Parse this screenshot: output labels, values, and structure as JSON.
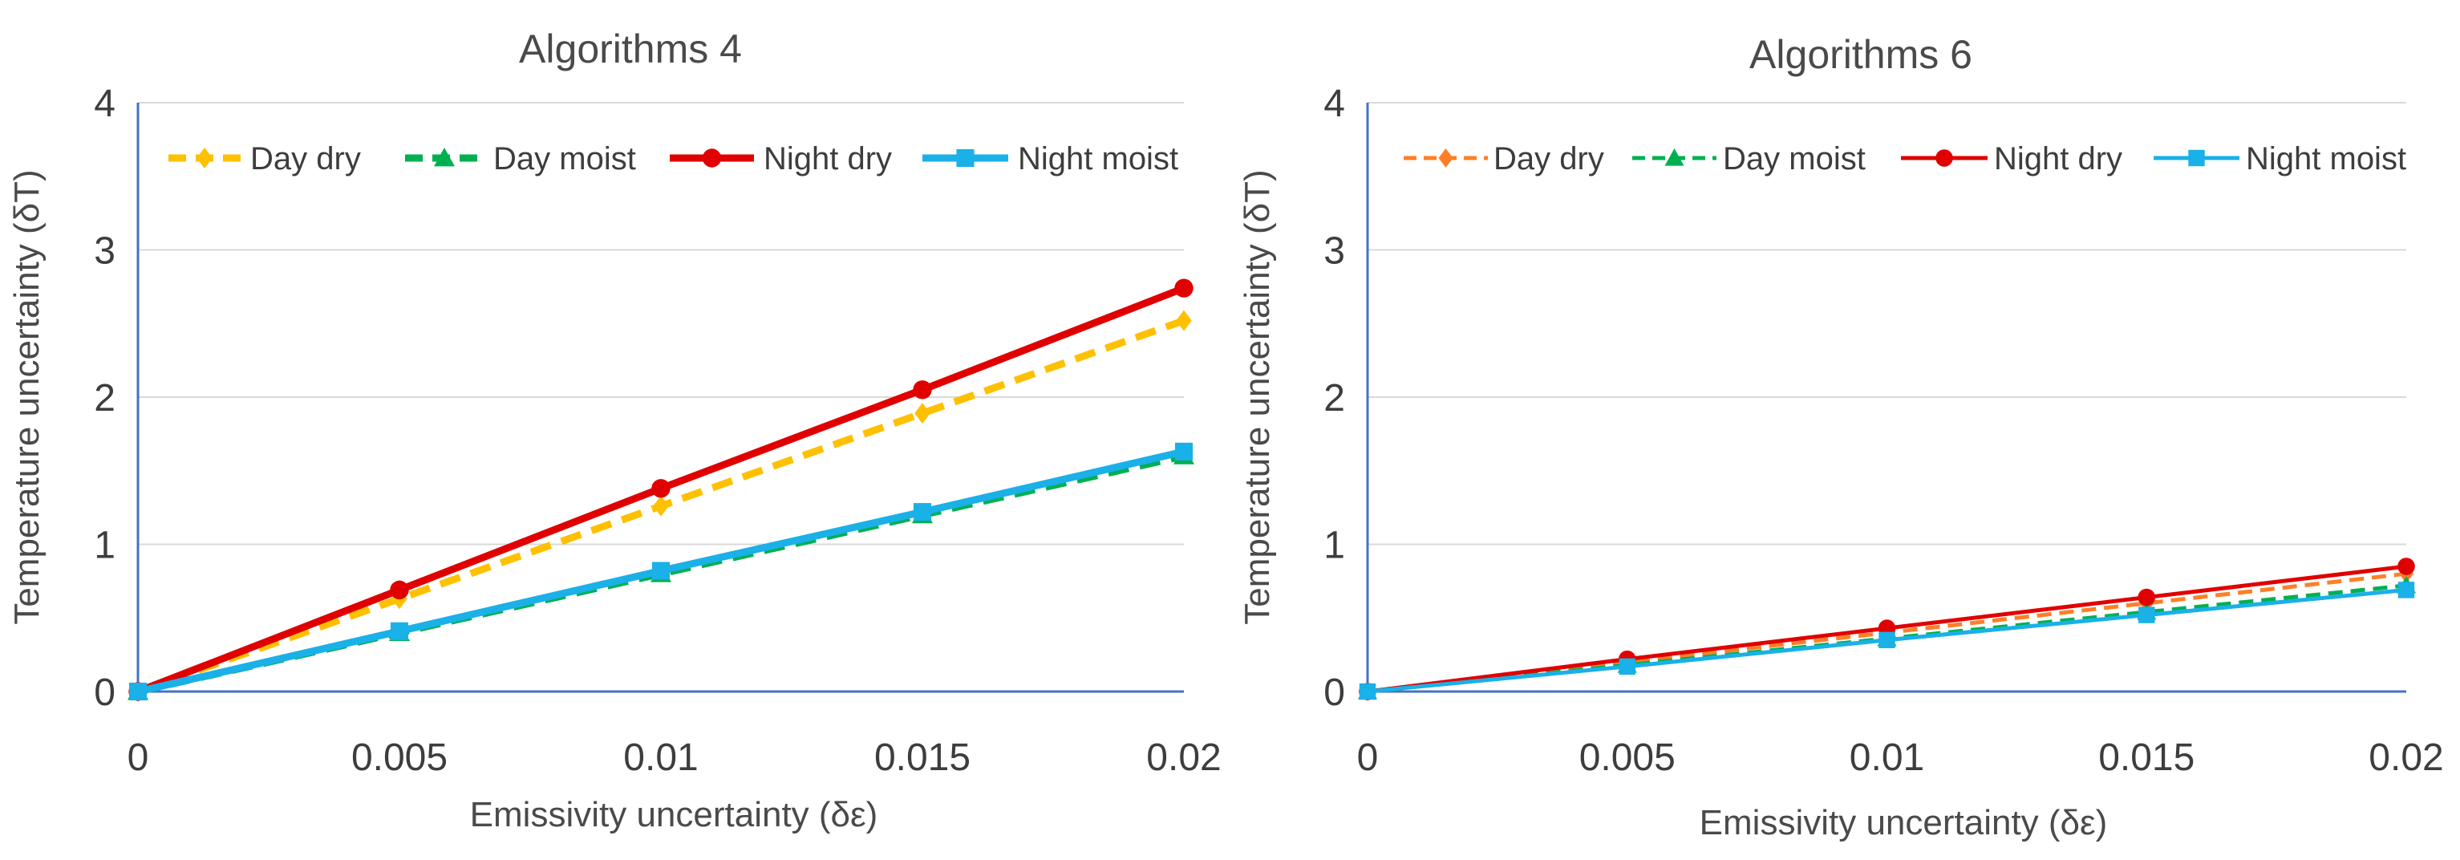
{
  "chart_data": [
    {
      "type": "line",
      "title": "Algorithms 4",
      "xlabel": "Emissivity uncertainty (δε)",
      "ylabel": "Temperature uncertainty (δT)",
      "x": [
        0,
        0.005,
        0.01,
        0.015,
        0.02
      ],
      "x_tick_labels": [
        "0",
        "0.005",
        "0.01",
        "0.015",
        "0.02"
      ],
      "xlim": [
        0,
        0.02
      ],
      "ylim": [
        0,
        4
      ],
      "y_ticks": [
        0,
        1,
        2,
        3,
        4
      ],
      "y_tick_labels": [
        "0",
        "1",
        "2",
        "3",
        "4"
      ],
      "grid": true,
      "legend_position": "top",
      "series": [
        {
          "name": "Day dry",
          "values": [
            0,
            0.63,
            1.26,
            1.89,
            2.52
          ],
          "color": "#FFC000",
          "dash": "dashed",
          "marker": "diamond",
          "weight": "thick"
        },
        {
          "name": "Day moist",
          "values": [
            0,
            0.4,
            0.8,
            1.2,
            1.6
          ],
          "color": "#00B050",
          "dash": "dashed",
          "marker": "triangle",
          "weight": "thick"
        },
        {
          "name": "Night dry",
          "values": [
            0,
            0.69,
            1.38,
            2.05,
            2.74
          ],
          "color": "#E00000",
          "dash": "solid",
          "marker": "circle",
          "weight": "thick"
        },
        {
          "name": "Night moist",
          "values": [
            0,
            0.41,
            0.82,
            1.22,
            1.63
          ],
          "color": "#1AB0E8",
          "dash": "solid",
          "marker": "square",
          "weight": "thick"
        }
      ]
    },
    {
      "type": "line",
      "title": "Algorithms 6",
      "xlabel": "Emissivity uncertainty (δε)",
      "ylabel": "Temperature uncertainty (δT)",
      "x": [
        0,
        0.005,
        0.01,
        0.015,
        0.02
      ],
      "x_tick_labels": [
        "0",
        "0.005",
        "0.01",
        "0.015",
        "0.02"
      ],
      "xlim": [
        0,
        0.02
      ],
      "ylim": [
        0,
        4
      ],
      "y_ticks": [
        0,
        1,
        2,
        3,
        4
      ],
      "y_tick_labels": [
        "0",
        "1",
        "2",
        "3",
        "4"
      ],
      "grid": true,
      "legend_position": "top",
      "series": [
        {
          "name": "Day dry",
          "values": [
            0,
            0.2,
            0.4,
            0.6,
            0.8
          ],
          "color": "#FF7F27",
          "dash": "dashdot",
          "marker": "diamond",
          "weight": "thin"
        },
        {
          "name": "Day moist",
          "values": [
            0,
            0.18,
            0.36,
            0.54,
            0.72
          ],
          "color": "#00B050",
          "dash": "dashed",
          "marker": "triangle",
          "weight": "thin"
        },
        {
          "name": "Night dry",
          "values": [
            0,
            0.22,
            0.43,
            0.64,
            0.85
          ],
          "color": "#E00000",
          "dash": "solid",
          "marker": "circle",
          "weight": "thin"
        },
        {
          "name": "Night moist",
          "values": [
            0,
            0.17,
            0.35,
            0.52,
            0.69
          ],
          "color": "#1AB0E8",
          "dash": "solid",
          "marker": "square",
          "weight": "thin"
        }
      ]
    }
  ]
}
